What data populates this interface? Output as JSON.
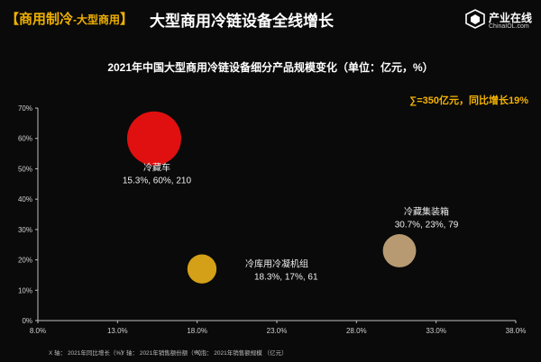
{
  "header": {
    "tag_open": "【",
    "tag_main": "商用制冷",
    "tag_sub": "-大型商用",
    "tag_close": "】",
    "title": "大型商用冷链设备全线增长",
    "logo_name": "产业在线",
    "logo_url": "ChinaIOL.com"
  },
  "summary": {
    "total": "∑=350亿元，同比增长19%"
  },
  "colors": {
    "background": "#0a0a0a",
    "accent": "#f0b000",
    "bubble_red": "#e01010",
    "bubble_gold": "#d4a017",
    "bubble_tan": "#b89a72"
  },
  "chart_data": {
    "type": "scatter",
    "title": "2021年中国大型商用冷链设备细分产品规模变化（单位：亿元，%）",
    "x_ticks": [
      "8.0%",
      "13.0%",
      "18.0%",
      "23.0%",
      "28.0%",
      "33.0%",
      "38.0%"
    ],
    "y_ticks": [
      "0%",
      "10%",
      "20%",
      "30%",
      "40%",
      "50%",
      "60%",
      "70%"
    ],
    "xlim": [
      8,
      38
    ],
    "ylim": [
      0,
      70
    ],
    "grid": false,
    "axis_captions": [
      "X 轴： 2021年同比增长（%）",
      "Y 轴： 2021年销售额份额（%）",
      "气泡： 2021年销售额规模 （亿元）"
    ],
    "points": [
      {
        "name": "冷藏车",
        "detail": "15.3%, 60%, 210",
        "x": 15.3,
        "y": 60,
        "size": 210,
        "color": "#e01010"
      },
      {
        "name": "冷库用冷凝机组",
        "detail": "18.3%, 17%, 61",
        "x": 18.3,
        "y": 17,
        "size": 61,
        "color": "#d4a017"
      },
      {
        "name": "冷藏集装箱",
        "detail": "30.7%, 23%, 79",
        "x": 30.7,
        "y": 23,
        "size": 79,
        "color": "#b89a72"
      }
    ]
  }
}
